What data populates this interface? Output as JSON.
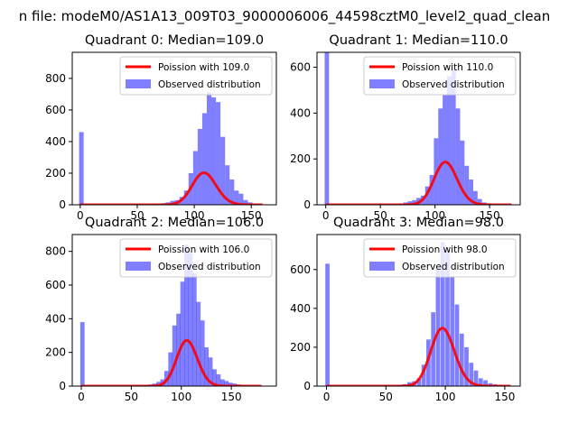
{
  "suptitle": "n file: modeM0/AS1A13_009T03_9000006006_44598cztM0_level2_quad_clean",
  "colors": {
    "observed": "#0000ff",
    "fit": "#ff0000"
  },
  "chart_data": [
    {
      "type": "bar",
      "title": "Quadrant 0: Median=109.0",
      "median": 109.0,
      "xlim": [
        -7,
        172
      ],
      "ylim": [
        0,
        965
      ],
      "xticks": [
        0,
        50,
        100,
        150
      ],
      "yticks": [
        0,
        200,
        400,
        600,
        800
      ],
      "grid": false,
      "legend_position": "top-right",
      "series": [
        {
          "name": "Observed distribution",
          "kind": "histogram",
          "bin_width": 4,
          "bins": [
            [
              -1,
              460
            ],
            [
              67,
              5
            ],
            [
              71,
              10
            ],
            [
              75,
              15
            ],
            [
              79,
              25
            ],
            [
              83,
              30
            ],
            [
              87,
              50
            ],
            [
              91,
              90
            ],
            [
              95,
              200
            ],
            [
              99,
              340
            ],
            [
              103,
              480
            ],
            [
              107,
              580
            ],
            [
              111,
              710
            ],
            [
              115,
              680
            ],
            [
              119,
              650
            ],
            [
              123,
              430
            ],
            [
              127,
              250
            ],
            [
              131,
              160
            ],
            [
              135,
              90
            ],
            [
              139,
              70
            ],
            [
              143,
              30
            ],
            [
              147,
              15
            ],
            [
              151,
              8
            ],
            [
              155,
              4
            ]
          ]
        },
        {
          "name": "Poission with 109.0",
          "kind": "poisson",
          "lambda": 109.0,
          "scale": 5300,
          "x_range": [
            0,
            160
          ]
        }
      ],
      "legend": [
        "Poission with 109.0",
        "Observed distribution"
      ]
    },
    {
      "type": "bar",
      "title": "Quadrant 1: Median=110.0",
      "median": 110.0,
      "xlim": [
        -8,
        178
      ],
      "ylim": [
        0,
        665
      ],
      "xticks": [
        0,
        50,
        100,
        150
      ],
      "yticks": [
        0,
        200,
        400,
        600
      ],
      "grid": false,
      "legend_position": "top-right",
      "series": [
        {
          "name": "Observed distribution",
          "kind": "histogram",
          "bin_width": 4,
          "bins": [
            [
              -1,
              665
            ],
            [
              67,
              5
            ],
            [
              71,
              10
            ],
            [
              75,
              15
            ],
            [
              79,
              20
            ],
            [
              83,
              30
            ],
            [
              87,
              40
            ],
            [
              91,
              80
            ],
            [
              95,
              130
            ],
            [
              99,
              290
            ],
            [
              103,
              420
            ],
            [
              107,
              480
            ],
            [
              111,
              560
            ],
            [
              115,
              590
            ],
            [
              119,
              420
            ],
            [
              123,
              280
            ],
            [
              127,
              170
            ],
            [
              131,
              110
            ],
            [
              135,
              60
            ],
            [
              139,
              25
            ],
            [
              143,
              10
            ],
            [
              147,
              5
            ],
            [
              151,
              3
            ]
          ]
        },
        {
          "name": "Poission with 110.0",
          "kind": "poisson",
          "lambda": 110.0,
          "scale": 4900,
          "x_range": [
            0,
            170
          ]
        }
      ],
      "legend": [
        "Poission with 110.0",
        "Observed distribution"
      ]
    },
    {
      "type": "bar",
      "title": "Quadrant 2: Median=106.0",
      "median": 106.0,
      "xlim": [
        -9,
        195
      ],
      "ylim": [
        0,
        900
      ],
      "xticks": [
        0,
        50,
        100,
        150
      ],
      "yticks": [
        0,
        200,
        400,
        600,
        800
      ],
      "grid": false,
      "legend_position": "top-right",
      "series": [
        {
          "name": "Observed distribution",
          "kind": "histogram",
          "bin_width": 4.3,
          "bins": [
            [
              -1,
              380
            ],
            [
              63,
              5
            ],
            [
              67,
              10
            ],
            [
              71,
              15
            ],
            [
              75,
              25
            ],
            [
              79,
              40
            ],
            [
              83,
              90
            ],
            [
              87,
              200
            ],
            [
              91,
              360
            ],
            [
              95,
              430
            ],
            [
              99,
              620
            ],
            [
              103,
              840
            ],
            [
              107,
              790
            ],
            [
              111,
              670
            ],
            [
              115,
              500
            ],
            [
              119,
              390
            ],
            [
              123,
              230
            ],
            [
              127,
              170
            ],
            [
              131,
              100
            ],
            [
              135,
              70
            ],
            [
              139,
              40
            ],
            [
              143,
              30
            ],
            [
              147,
              20
            ],
            [
              151,
              15
            ],
            [
              155,
              10
            ],
            [
              159,
              5
            ]
          ]
        },
        {
          "name": "Poission with 106.0",
          "kind": "poisson",
          "lambda": 106.0,
          "scale": 7000,
          "x_range": [
            0,
            180
          ]
        }
      ],
      "legend": [
        "Poission with 106.0",
        "Observed distribution"
      ]
    },
    {
      "type": "bar",
      "title": "Quadrant 3: Median=98.0",
      "median": 98.0,
      "xlim": [
        -8,
        163
      ],
      "ylim": [
        0,
        780
      ],
      "xticks": [
        0,
        50,
        100,
        150
      ],
      "yticks": [
        0,
        200,
        400,
        600
      ],
      "grid": false,
      "legend_position": "top-right",
      "series": [
        {
          "name": "Observed distribution",
          "kind": "histogram",
          "bin_width": 3.6,
          "bins": [
            [
              -1,
              630
            ],
            [
              60,
              5
            ],
            [
              64,
              10
            ],
            [
              68,
              20
            ],
            [
              72,
              25
            ],
            [
              76,
              40
            ],
            [
              80,
              110
            ],
            [
              84,
              240
            ],
            [
              88,
              380
            ],
            [
              92,
              600
            ],
            [
              96,
              740
            ],
            [
              100,
              700
            ],
            [
              104,
              560
            ],
            [
              108,
              420
            ],
            [
              112,
              270
            ],
            [
              116,
              200
            ],
            [
              120,
              120
            ],
            [
              124,
              80
            ],
            [
              128,
              40
            ],
            [
              132,
              30
            ],
            [
              136,
              15
            ],
            [
              140,
              10
            ],
            [
              144,
              5
            ]
          ]
        },
        {
          "name": "Poission with 98.0",
          "kind": "poisson",
          "lambda": 98.0,
          "scale": 7400,
          "x_range": [
            0,
            155
          ]
        }
      ],
      "legend": [
        "Poission with 98.0",
        "Observed distribution"
      ]
    }
  ]
}
